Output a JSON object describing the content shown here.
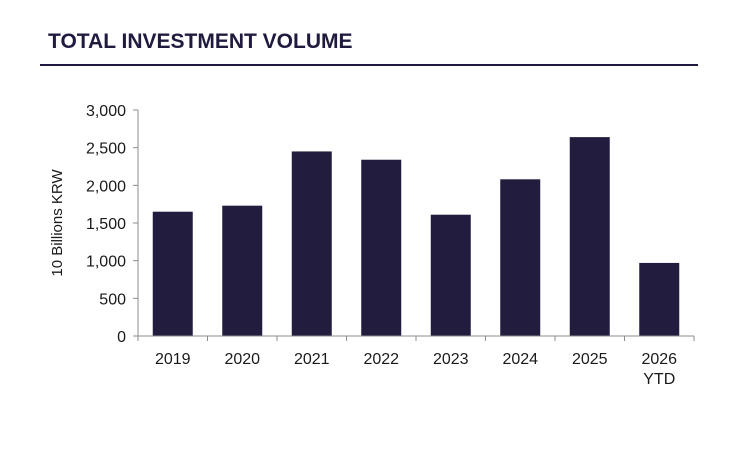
{
  "header": {
    "title": "TOTAL INVESTMENT VOLUME"
  },
  "colors": {
    "bar": "#221d3e",
    "axis": "#8c8c8c",
    "title_rule": "#1f1b3f"
  },
  "chart_data": {
    "type": "bar",
    "title": "",
    "xlabel": "",
    "ylabel": "10 Billions KRW",
    "categories": [
      [
        "2019"
      ],
      [
        "2020"
      ],
      [
        "2021"
      ],
      [
        "2022"
      ],
      [
        "2023"
      ],
      [
        "2024"
      ],
      [
        "2025"
      ],
      [
        "2026",
        "YTD"
      ]
    ],
    "values": [
      1650,
      1730,
      2450,
      2340,
      1610,
      2080,
      2640,
      970
    ],
    "ylim": [
      0,
      3000
    ],
    "yticks": [
      0,
      500,
      1000,
      1500,
      2000,
      2500,
      3000
    ],
    "ytick_labels": [
      "0",
      "500",
      "1,000",
      "1,500",
      "2,000",
      "2,500",
      "3,000"
    ],
    "grid": false,
    "legend": "none"
  }
}
